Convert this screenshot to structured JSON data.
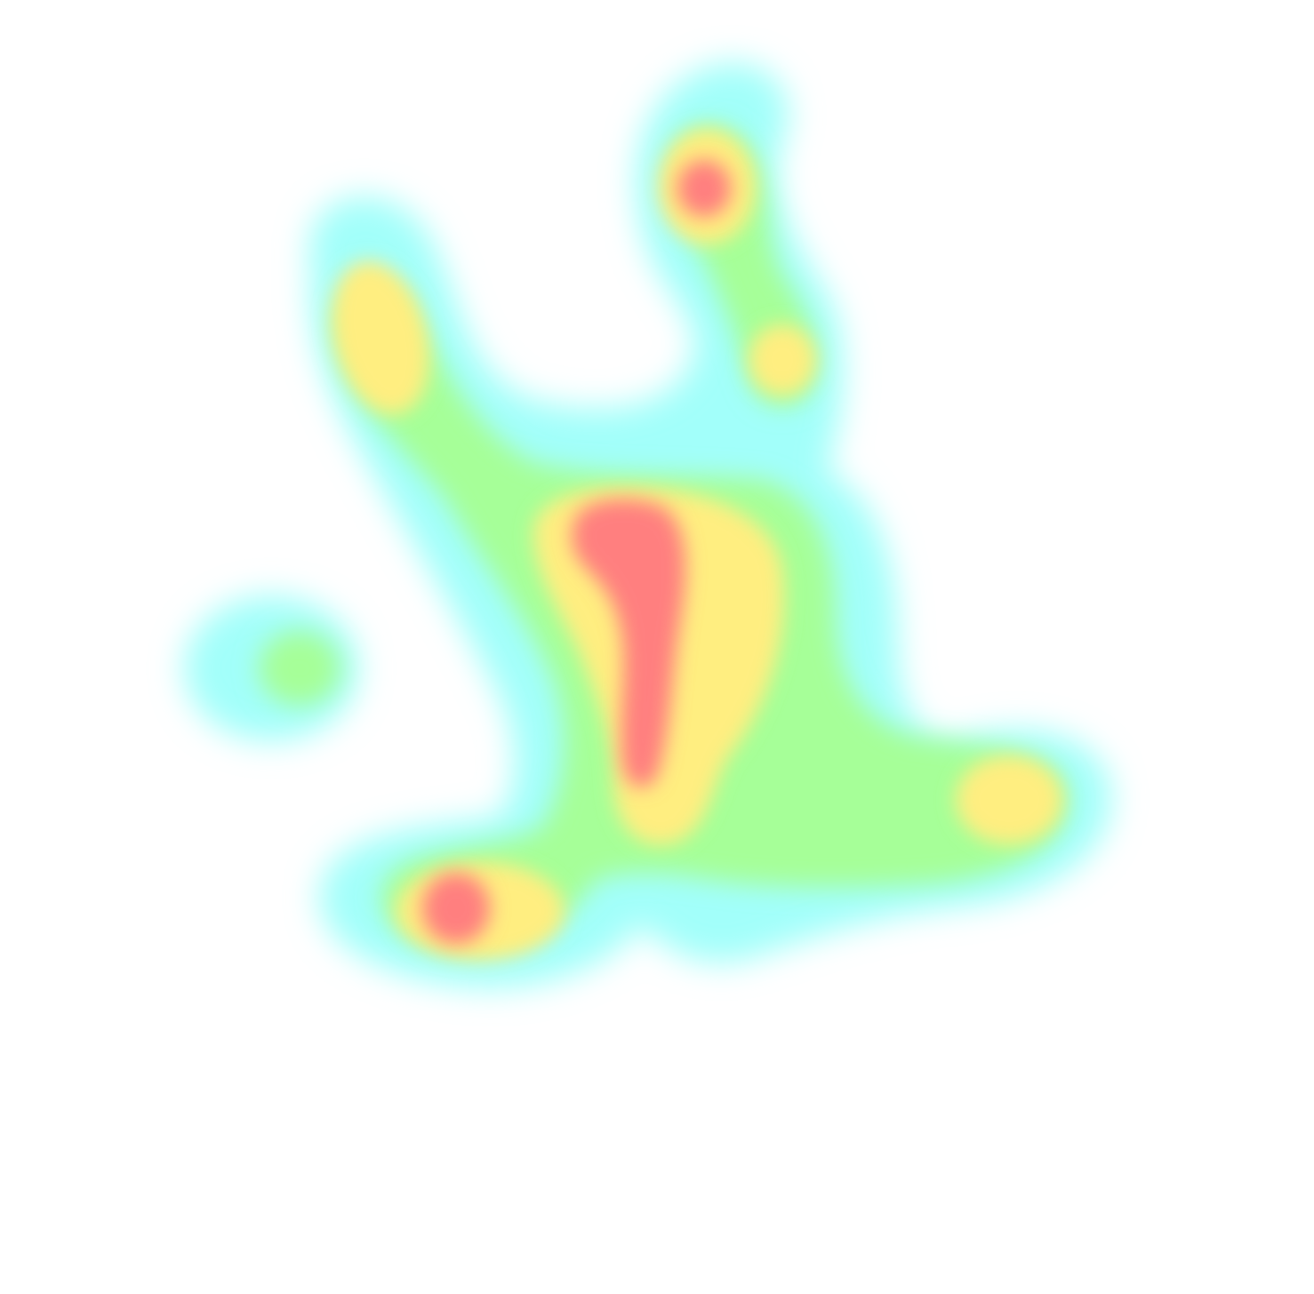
{
  "heatmap": {
    "background": "#ffffff",
    "palette": {
      "cold": "#a2fffa",
      "cool": "#a6ff98",
      "warm": "#ffee80",
      "hot": "#ff7f7f"
    },
    "levels": [
      "cold",
      "cool",
      "warm",
      "hot"
    ]
  }
}
